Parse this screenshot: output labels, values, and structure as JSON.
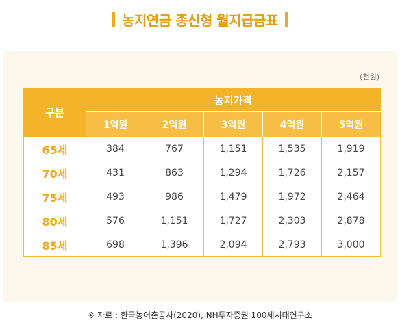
{
  "title": "농지연금 종신형 월지급금표",
  "unit": "(천원)",
  "table": {
    "row_header": "구분",
    "group_header": "농지가격",
    "columns": [
      "1억원",
      "2억원",
      "3억원",
      "4억원",
      "5억원"
    ],
    "rows": [
      {
        "age": "65세",
        "values": [
          "384",
          "767",
          "1,151",
          "1,535",
          "1,919"
        ]
      },
      {
        "age": "70세",
        "values": [
          "431",
          "863",
          "1,294",
          "1,726",
          "2,157"
        ]
      },
      {
        "age": "75세",
        "values": [
          "493",
          "986",
          "1,479",
          "1,972",
          "2,464"
        ]
      },
      {
        "age": "80세",
        "values": [
          "576",
          "1,151",
          "1,727",
          "2,303",
          "2,878"
        ]
      },
      {
        "age": "85세",
        "values": [
          "698",
          "1,396",
          "2,094",
          "2,793",
          "3,000"
        ]
      }
    ]
  },
  "source": "※ 자료 : 한국농어촌공사(2020), NH투자증권 100세시대연구소",
  "colors": {
    "accent": "#f4b42a",
    "title": "#e59b12",
    "panel": "#fdf8ec"
  }
}
